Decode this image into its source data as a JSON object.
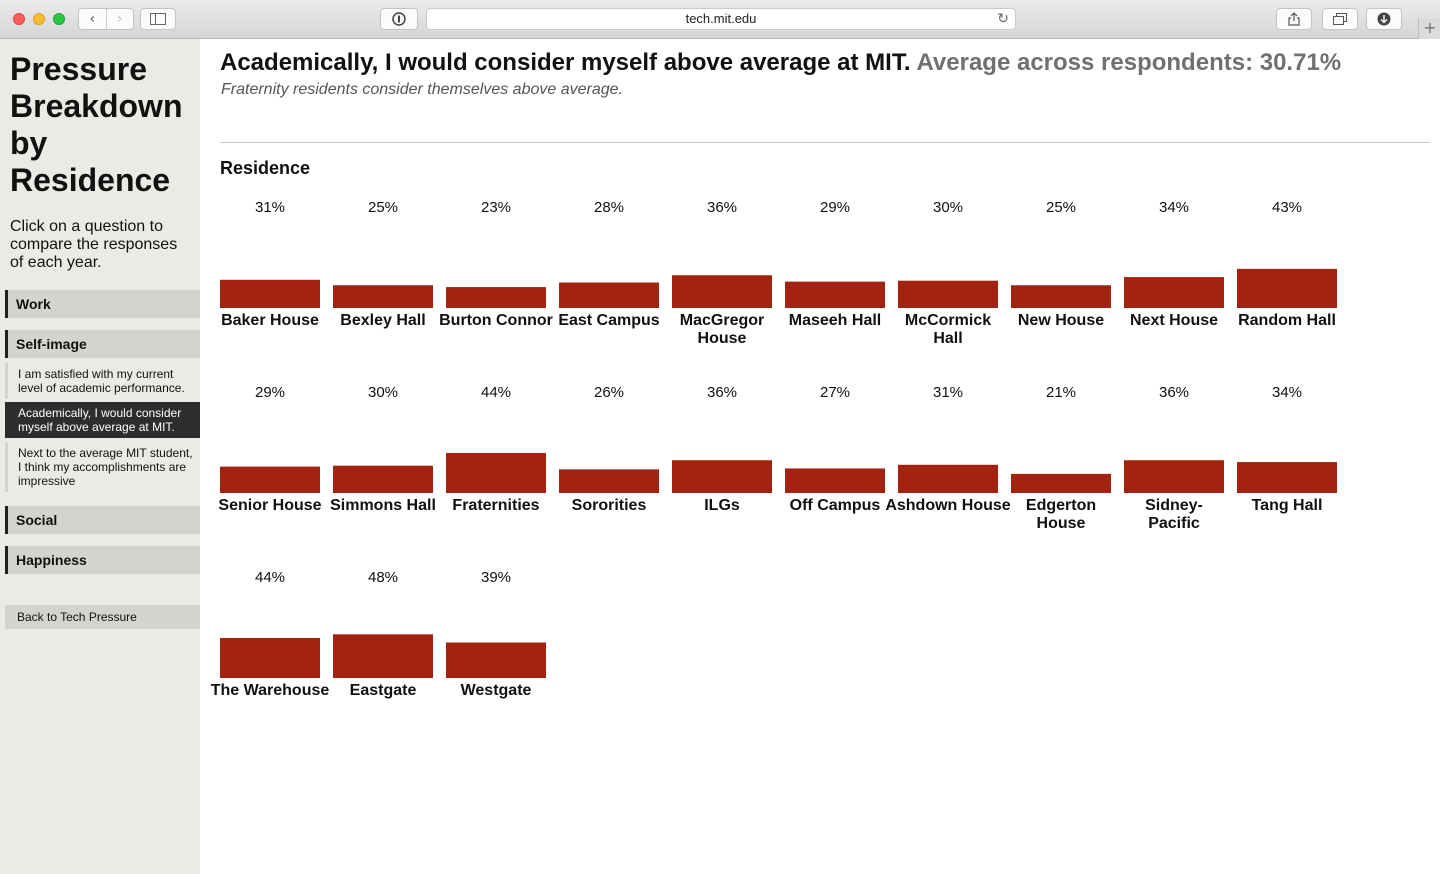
{
  "browser": {
    "url": "tech.mit.edu",
    "icons": {
      "back": "chevron-left-icon",
      "forward": "chevron-right-icon",
      "sidebar": "sidebar-icon",
      "reader": "reader-icon",
      "reload": "reload-icon",
      "share": "share-icon",
      "tabs": "tabs-icon",
      "download": "download-icon",
      "new_tab": "plus-icon"
    }
  },
  "sidebar": {
    "title": "Pressure Breakdown by Residence",
    "intro": "Click on a question to compare the responses of each year.",
    "categories": {
      "work": "Work",
      "self_image": "Self-image",
      "social": "Social",
      "happiness": "Happiness"
    },
    "questions": [
      "I am satisfied with my current level of academic performance.",
      "Academically, I would consider myself above average at MIT.",
      "Next to the average MIT student, I think my accomplishments are impressive"
    ],
    "back_link": "Back to Tech Pressure"
  },
  "main": {
    "question": "Academically, I would consider myself above average at MIT.",
    "average": "Average across respondents: 30.71%",
    "subtitle": "Fraternity residents consider themselves above average.",
    "section_label": "Residence"
  },
  "colors": {
    "bar": "#a32311",
    "active_question_bg": "#2d2d2d"
  },
  "chart_data": {
    "type": "bar",
    "categories": [
      "Baker House",
      "Bexley Hall",
      "Burton Connor",
      "East Campus",
      "MacGregor House",
      "Maseeh Hall",
      "McCormick Hall",
      "New House",
      "Next House",
      "Random Hall",
      "Senior House",
      "Simmons Hall",
      "Fraternities",
      "Sororities",
      "ILGs",
      "Off Campus",
      "Ashdown House",
      "Edgerton House",
      "Sidney-Pacific",
      "Tang Hall",
      "The Warehouse",
      "Eastgate",
      "Westgate"
    ],
    "labels": [
      "31%",
      "25%",
      "23%",
      "28%",
      "36%",
      "29%",
      "30%",
      "25%",
      "34%",
      "43%",
      "29%",
      "30%",
      "44%",
      "26%",
      "36%",
      "27%",
      "31%",
      "21%",
      "36%",
      "34%",
      "44%",
      "48%",
      "39%"
    ],
    "values": [
      31,
      25,
      23,
      28,
      36,
      29,
      30,
      25,
      34,
      43,
      29,
      30,
      44,
      26,
      36,
      27,
      31,
      21,
      36,
      34,
      44,
      48,
      39
    ],
    "unit": "%"
  }
}
